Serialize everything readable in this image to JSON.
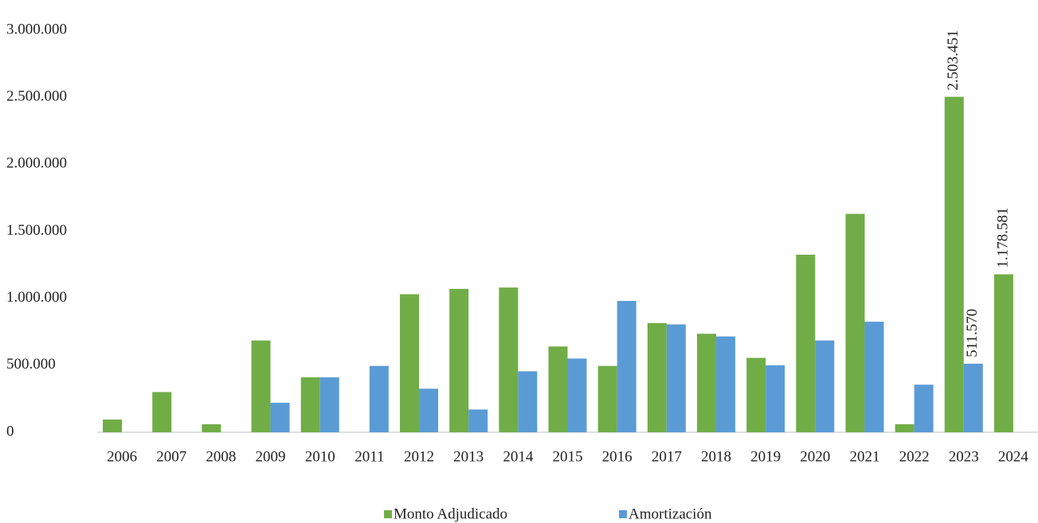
{
  "chart_data": {
    "type": "bar",
    "categories": [
      "2006",
      "2007",
      "2008",
      "2009",
      "2010",
      "2011",
      "2012",
      "2013",
      "2014",
      "2015",
      "2016",
      "2017",
      "2018",
      "2019",
      "2020",
      "2021",
      "2022",
      "2023",
      "2024"
    ],
    "series": [
      {
        "name": "Monto Adjudicado",
        "color": "#70ad47",
        "values": [
          95000,
          300000,
          60000,
          685000,
          410000,
          null,
          1030000,
          1070000,
          1080000,
          640000,
          495000,
          815000,
          735000,
          555000,
          1325000,
          1630000,
          60000,
          2503451,
          1178581
        ],
        "value_labels": [
          null,
          null,
          null,
          null,
          null,
          null,
          null,
          null,
          null,
          null,
          null,
          null,
          null,
          null,
          null,
          null,
          null,
          "2.503.451",
          "1.178.581"
        ]
      },
      {
        "name": "Amortización",
        "color": "#5b9bd5",
        "values": [
          null,
          null,
          null,
          220000,
          410000,
          495000,
          325000,
          170000,
          455000,
          550000,
          980000,
          805000,
          715000,
          500000,
          685000,
          825000,
          355000,
          511570,
          null
        ],
        "value_labels": [
          null,
          null,
          null,
          null,
          null,
          null,
          null,
          null,
          null,
          null,
          null,
          null,
          null,
          null,
          null,
          null,
          null,
          "511.570",
          null
        ]
      }
    ],
    "ylim": [
      0,
      3000000
    ],
    "yticks": [
      0,
      {
        "value": 500000,
        "label": "500.000"
      },
      {
        "value": 1000000,
        "label": "1.000.000"
      },
      {
        "value": 1500000,
        "label": "1.500.000"
      },
      {
        "value": 2000000,
        "label": "2.000.000"
      },
      {
        "value": 2500000,
        "label": "2.500.000"
      },
      {
        "value": 3000000,
        "label": "3.000.000"
      }
    ],
    "grid": false,
    "legend": "bottom"
  }
}
